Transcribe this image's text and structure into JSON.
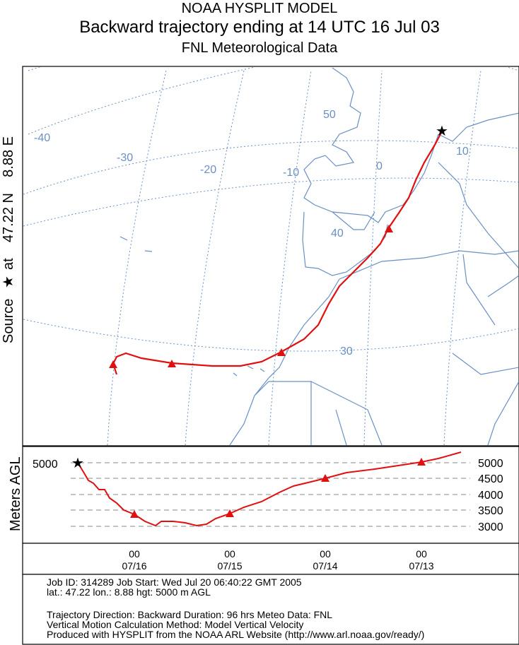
{
  "header": {
    "line1": "NOAA HYSPLIT MODEL",
    "line2": "Backward trajectory ending at 14 UTC 16 Jul 03",
    "line3": "FNL  Meteorological Data"
  },
  "source_label": {
    "prefix": "Source",
    "star": "★",
    "text": "at    47.22 N    8.88 E"
  },
  "map": {
    "lon_labels": [
      "-40",
      "-30",
      "-20",
      "-10",
      "0",
      "10"
    ],
    "lat_labels": [
      "50",
      "40",
      "30"
    ],
    "grid_color": "#6a8fc5",
    "coast_color": "#6a8fc5",
    "trajectory_color": "#e01010",
    "source_marker_color": "#000000"
  },
  "vertical": {
    "axis_title": "Meters AGL",
    "left_value": "5000",
    "right_levels": [
      "5000",
      "4500",
      "4000",
      "3500",
      "3000"
    ],
    "time_ticks": [
      {
        "hour": "00",
        "date": "07/16"
      },
      {
        "hour": "00",
        "date": "07/15"
      },
      {
        "hour": "00",
        "date": "07/14"
      },
      {
        "hour": "00",
        "date": "07/13"
      }
    ]
  },
  "footer": {
    "line1": "Job ID: 314289          Job Start: Wed Jul 20 06:40:22 GMT 2005",
    "line2": "lat.: 47.22   lon.: 8.88      hgt: 5000 m AGL",
    "line3": "Trajectory Direction: Backward     Duration: 96 hrs     Meteo Data: FNL",
    "line4": "Vertical Motion Calculation Method: Model Vertical Velocity",
    "line5": "Produced with HYSPLIT from the NOAA ARL Website (http://www.arl.noaa.gov/ready/)"
  },
  "chart_data": {
    "type": "line",
    "title": "Backward trajectory ending at 14 UTC 16 Jul 03",
    "ylabel": "Meters AGL",
    "series": [
      {
        "hours_back": [
          0,
          24,
          48,
          72,
          96
        ],
        "lat": [
          47.22,
          40.5,
          31.0,
          29.3,
          28.8
        ],
        "lon": [
          8.88,
          0.5,
          -7.5,
          -19.0,
          -26.0
        ],
        "height_m": [
          5000,
          3500,
          3500,
          4500,
          5000
        ]
      }
    ],
    "y_ticks": [
      3000,
      3500,
      4000,
      4500,
      5000
    ],
    "x_ticks": [
      "07/16",
      "07/15",
      "07/14",
      "07/13"
    ]
  }
}
